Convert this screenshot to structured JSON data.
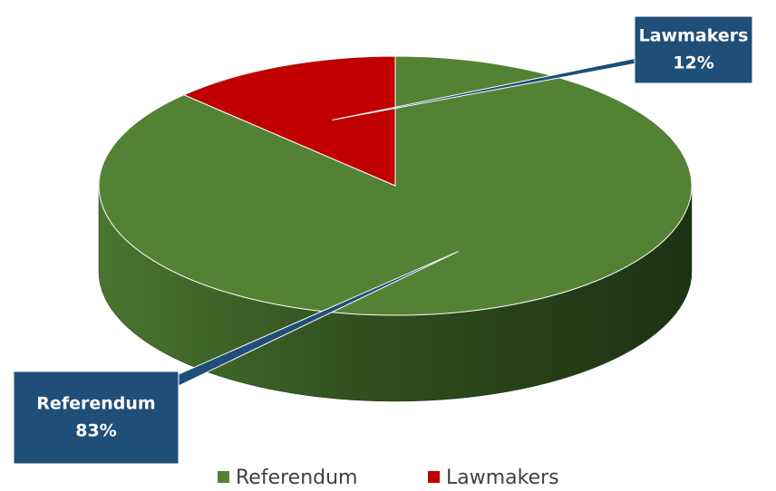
{
  "chart_data": {
    "type": "pie",
    "categories": [
      "Referendum",
      "Lawmakers"
    ],
    "values": [
      83,
      12
    ],
    "value_labels": [
      "83%",
      "12%"
    ],
    "colors": [
      "#548235",
      "#c00000"
    ],
    "legend": "bottom"
  }
}
